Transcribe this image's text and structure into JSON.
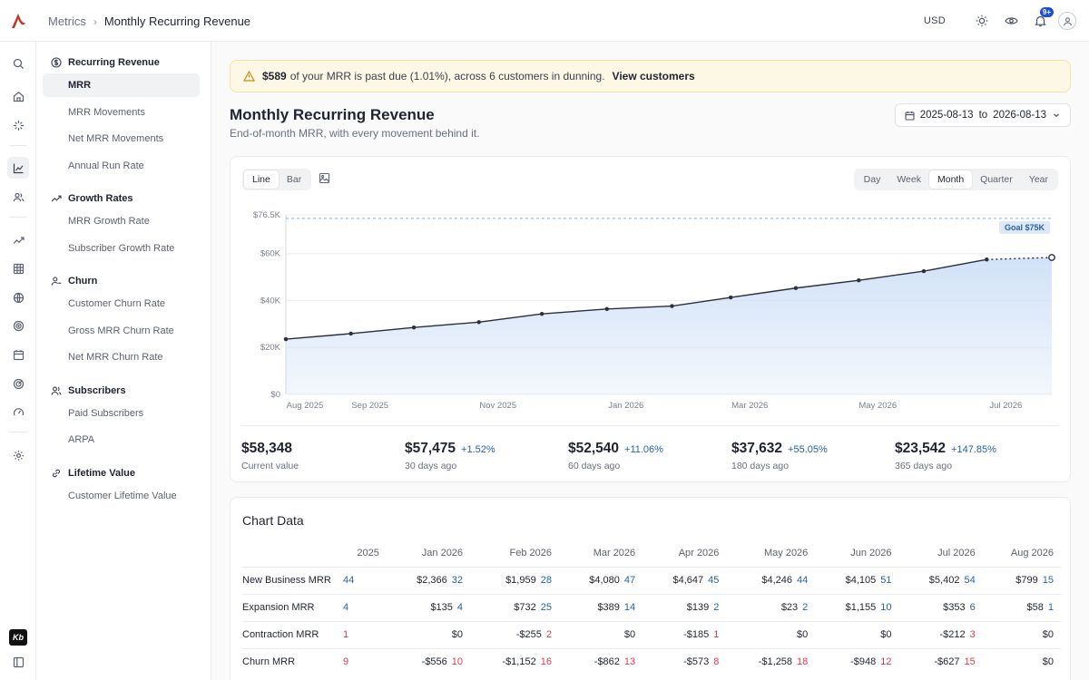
{
  "topbar": {
    "breadcrumb_root": "Metrics",
    "breadcrumb_current": "Monthly Recurring Revenue",
    "currency": "USD",
    "notif_badge": "9+"
  },
  "sidebar": {
    "groups": [
      {
        "label": "Recurring Revenue",
        "icon": "dollar-circle-icon",
        "items": [
          "MRR",
          "MRR Movements",
          "Net MRR Movements",
          "Annual Run Rate"
        ]
      },
      {
        "label": "Growth Rates",
        "icon": "trend-up-icon",
        "items": [
          "MRR Growth Rate",
          "Subscriber Growth Rate"
        ]
      },
      {
        "label": "Churn",
        "icon": "user-minus-icon",
        "items": [
          "Customer Churn Rate",
          "Gross MRR Churn Rate",
          "Net MRR Churn Rate"
        ]
      },
      {
        "label": "Subscribers",
        "icon": "users-icon",
        "items": [
          "Paid Subscribers",
          "ARPA"
        ]
      },
      {
        "label": "Lifetime Value",
        "icon": "link-icon",
        "items": [
          "Customer Lifetime Value"
        ]
      }
    ],
    "active_item": "MRR"
  },
  "alert": {
    "amount": "$589",
    "text": "of your MRR is past due (1.01%), across 6 customers in dunning.",
    "link": "View customers"
  },
  "page": {
    "title": "Monthly Recurring Revenue",
    "subtitle": "End-of-month MRR, with every movement behind it.",
    "date_from": "2025-08-13",
    "date_to_word": "to",
    "date_to": "2026-08-13"
  },
  "chart_controls": {
    "type_options": [
      "Line",
      "Bar"
    ],
    "type_selected": "Line",
    "interval_options": [
      "Day",
      "Week",
      "Month",
      "Quarter",
      "Year"
    ],
    "interval_selected": "Month"
  },
  "chart_data": {
    "type": "area",
    "y_ticks": [
      "$0",
      "$20K",
      "$40K",
      "$60K",
      "$76.5K"
    ],
    "ylim": [
      0,
      76500
    ],
    "goal_value": 75000,
    "goal_label": "Goal $75K",
    "x_tick_labels": [
      "Aug 2025",
      "Sep 2025",
      "Nov 2025",
      "Jan 2026",
      "Mar 2026",
      "May 2026",
      "Jul 2026"
    ],
    "points": [
      {
        "x": "2025-08-13",
        "y": 23542
      },
      {
        "x": "2025-09-13",
        "y": 25900
      },
      {
        "x": "2025-10-13",
        "y": 28500
      },
      {
        "x": "2025-11-13",
        "y": 30800
      },
      {
        "x": "2025-12-13",
        "y": 34300
      },
      {
        "x": "2026-01-13",
        "y": 36400
      },
      {
        "x": "2026-02-13",
        "y": 37632
      },
      {
        "x": "2026-03-13",
        "y": 41300
      },
      {
        "x": "2026-04-13",
        "y": 45300
      },
      {
        "x": "2026-05-13",
        "y": 48600
      },
      {
        "x": "2026-06-13",
        "y": 52540
      },
      {
        "x": "2026-07-13",
        "y": 57475
      },
      {
        "x": "2026-08-13",
        "y": 58348
      }
    ],
    "last_point_projected": true,
    "grid": true
  },
  "stats": [
    {
      "value": "$58,348",
      "delta": "",
      "label": "Current value"
    },
    {
      "value": "$57,475",
      "delta": "+1.52%",
      "label": "30 days ago"
    },
    {
      "value": "$52,540",
      "delta": "+11.06%",
      "label": "60 days ago"
    },
    {
      "value": "$37,632",
      "delta": "+55.05%",
      "label": "180 days ago"
    },
    {
      "value": "$23,542",
      "delta": "+147.85%",
      "label": "365 days ago"
    }
  ],
  "table": {
    "title": "Chart Data",
    "columns": [
      "2025",
      "Jan 2026",
      "Feb 2026",
      "Mar 2026",
      "Apr 2026",
      "May 2026",
      "Jun 2026",
      "Jul 2026",
      "Aug 2026"
    ],
    "rows": [
      {
        "label": "New Business MRR",
        "kind": "pos",
        "cells": [
          [
            "",
            "44"
          ],
          [
            "$2,366",
            "32"
          ],
          [
            "$1,959",
            "28"
          ],
          [
            "$4,080",
            "47"
          ],
          [
            "$4,647",
            "45"
          ],
          [
            "$4,246",
            "44"
          ],
          [
            "$4,105",
            "51"
          ],
          [
            "$5,402",
            "54"
          ],
          [
            "$799",
            "15"
          ]
        ]
      },
      {
        "label": "Expansion MRR",
        "kind": "pos",
        "cells": [
          [
            "",
            "4"
          ],
          [
            "$135",
            "4"
          ],
          [
            "$732",
            "25"
          ],
          [
            "$389",
            "14"
          ],
          [
            "$139",
            "2"
          ],
          [
            "$23",
            "2"
          ],
          [
            "$1,155",
            "10"
          ],
          [
            "$353",
            "6"
          ],
          [
            "$58",
            "1"
          ]
        ]
      },
      {
        "label": "Contraction MRR",
        "kind": "neg",
        "cells": [
          [
            "",
            "1"
          ],
          [
            "$0",
            ""
          ],
          [
            "-$255",
            "2"
          ],
          [
            "$0",
            ""
          ],
          [
            "-$185",
            "1"
          ],
          [
            "$0",
            ""
          ],
          [
            "$0",
            ""
          ],
          [
            "-$212",
            "3"
          ],
          [
            "$0",
            ""
          ]
        ]
      },
      {
        "label": "Churn MRR",
        "kind": "neg",
        "cells": [
          [
            "",
            "9"
          ],
          [
            "-$556",
            "10"
          ],
          [
            "-$1,152",
            "16"
          ],
          [
            "-$862",
            "13"
          ],
          [
            "-$573",
            "8"
          ],
          [
            "-$1,258",
            "18"
          ],
          [
            "-$948",
            "12"
          ],
          [
            "-$627",
            "15"
          ],
          [
            "$0",
            ""
          ]
        ]
      }
    ]
  },
  "colors": {
    "accent": "#2563a6",
    "negative": "#dc3b4f",
    "area": "#cfe0f7",
    "line": "#2a2f3a",
    "goal": "#7fb0e6"
  }
}
